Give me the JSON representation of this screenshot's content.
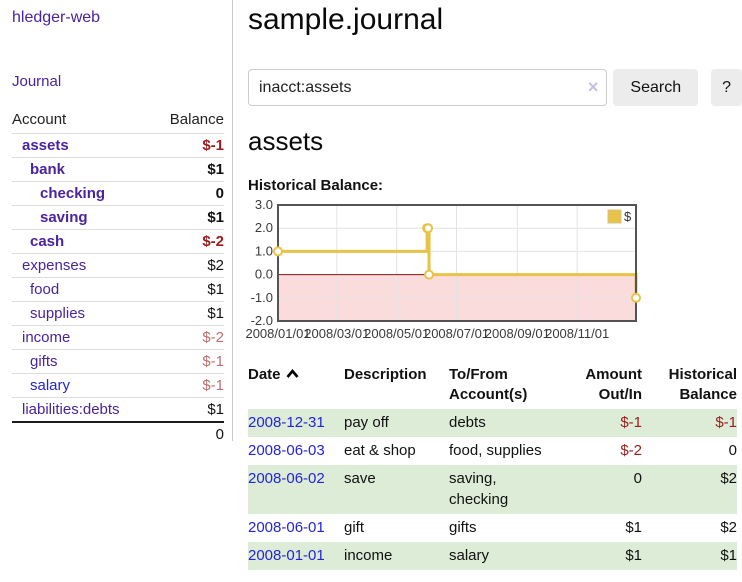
{
  "app": {
    "brand": "hledger-web",
    "nav_journal": "Journal"
  },
  "sidebar": {
    "headers": {
      "account": "Account",
      "balance": "Balance"
    },
    "rows": [
      {
        "name": "assets",
        "balance": "$-1"
      },
      {
        "name": "bank",
        "balance": "$1"
      },
      {
        "name": "checking",
        "balance": "0"
      },
      {
        "name": "saving",
        "balance": "$1"
      },
      {
        "name": "cash",
        "balance": "$-2"
      },
      {
        "name": "expenses",
        "balance": "$2"
      },
      {
        "name": "food",
        "balance": "$1"
      },
      {
        "name": "supplies",
        "balance": "$1"
      },
      {
        "name": "income",
        "balance": "$-2"
      },
      {
        "name": "gifts",
        "balance": "$-1"
      },
      {
        "name": "salary",
        "balance": "$-1"
      },
      {
        "name": "liabilities:debts",
        "balance": "$1"
      }
    ],
    "total": "0"
  },
  "main": {
    "title": "sample.journal",
    "search": {
      "value": "inacct:assets",
      "clear": "×",
      "search_button": "Search",
      "help_button": "?"
    },
    "account_title": "assets",
    "chart_heading": "Historical Balance:"
  },
  "chart_data": {
    "type": "line",
    "step": true,
    "title": "Historical Balance",
    "x_range": [
      "2008-01-01",
      "2008-12-31"
    ],
    "ylim": [
      -2,
      3
    ],
    "yticks": [
      "3.0",
      "2.0",
      "1.0",
      "0.0",
      "-1.0",
      "-2.0"
    ],
    "xticks": [
      {
        "date": "2008-01-01",
        "label": "2008/01/01"
      },
      {
        "date": "2008-03-01",
        "label": "2008/03/01"
      },
      {
        "date": "2008-05-01",
        "label": "2008/05/01"
      },
      {
        "date": "2008-07-01",
        "label": "2008/07/01"
      },
      {
        "date": "2008-09-01",
        "label": "2008/09/01"
      },
      {
        "date": "2008-11-01",
        "label": "2008/11/01"
      }
    ],
    "series": [
      {
        "name": "$",
        "color": "#e9c347",
        "points": [
          [
            "2008-01-01",
            1
          ],
          [
            "2008-06-01",
            2
          ],
          [
            "2008-06-02",
            2
          ],
          [
            "2008-06-03",
            0
          ],
          [
            "2008-12-31",
            -1
          ]
        ]
      }
    ],
    "legend_position": "top-right",
    "grid": true,
    "negative_region_fill": "#fbdcdc",
    "zero_line_color": "#8b1010",
    "border_color": "#545454",
    "grid_color": "#e3e3e3"
  },
  "register": {
    "headers": {
      "date": "Date",
      "description": "Description",
      "accounts": "To/From Account(s)",
      "amount": "Amount Out/In",
      "balance": "Historical Balance"
    },
    "rows": [
      {
        "date": "2008-12-31",
        "description": "pay off",
        "accounts": "debts",
        "amount": "$-1",
        "balance": "$-1"
      },
      {
        "date": "2008-06-03",
        "description": "eat & shop",
        "accounts": "food, supplies",
        "amount": "$-2",
        "balance": "0"
      },
      {
        "date": "2008-06-02",
        "description": "save",
        "accounts": "saving, checking",
        "amount": "0",
        "balance": "$2"
      },
      {
        "date": "2008-06-01",
        "description": "gift",
        "accounts": "gifts",
        "amount": "$1",
        "balance": "$2"
      },
      {
        "date": "2008-01-01",
        "description": "income",
        "accounts": "salary",
        "amount": "$1",
        "balance": "$1"
      }
    ]
  },
  "colors": {
    "brand_purple": "#4a23a0",
    "link_blue": "#2424dd",
    "negative": "#9b1c1c",
    "negative_soft": "#bc6f6f",
    "row_green": "#dcecd7",
    "chart_gold": "#e9c347",
    "button_gray": "#ececec"
  }
}
